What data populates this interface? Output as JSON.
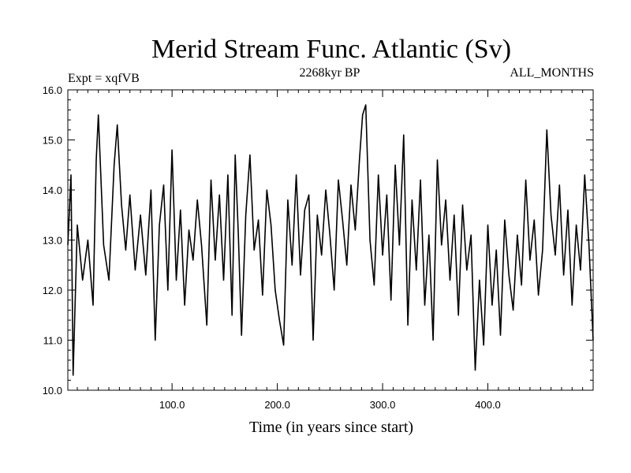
{
  "chart_data": {
    "type": "line",
    "title": "Merid Stream Func. Atlantic (Sv)",
    "subtitle_left": "Expt = xqfVB",
    "subtitle_center": "2268kyr BP",
    "subtitle_right": "ALL_MONTHS",
    "xlabel": "Time (in years since start)",
    "ylabel": "",
    "xlim": [
      1,
      500
    ],
    "ylim": [
      10.0,
      16.0
    ],
    "x_ticks": [
      100,
      200,
      300,
      400
    ],
    "x_tick_labels": [
      "100.0",
      "200.0",
      "300.0",
      "400.0"
    ],
    "y_ticks": [
      10,
      11,
      12,
      13,
      14,
      15,
      16
    ],
    "y_tick_labels": [
      "10.0",
      "11.0",
      "12.0",
      "13.0",
      "14.0",
      "15.0",
      "16.0"
    ],
    "series": [
      {
        "name": "Merid Stream Func. Atlantic",
        "color": "#000000",
        "x": [
          1,
          4,
          6,
          10,
          15,
          20,
          25,
          28,
          30,
          35,
          40,
          45,
          48,
          52,
          56,
          60,
          65,
          70,
          75,
          80,
          84,
          88,
          92,
          96,
          100,
          104,
          108,
          112,
          116,
          120,
          124,
          128,
          133,
          137,
          141,
          145,
          149,
          153,
          157,
          160,
          163,
          166,
          170,
          174,
          178,
          182,
          186,
          190,
          194,
          198,
          202,
          206,
          210,
          214,
          218,
          222,
          226,
          230,
          234,
          238,
          242,
          246,
          250,
          254,
          258,
          262,
          266,
          270,
          274,
          278,
          281,
          284,
          288,
          292,
          296,
          300,
          304,
          308,
          312,
          316,
          320,
          324,
          328,
          332,
          336,
          340,
          344,
          348,
          352,
          356,
          360,
          364,
          368,
          372,
          376,
          380,
          384,
          388,
          392,
          396,
          400,
          404,
          408,
          412,
          416,
          420,
          424,
          428,
          432,
          436,
          440,
          444,
          448,
          452,
          456,
          460,
          464,
          468,
          472,
          476,
          480,
          484,
          488,
          492,
          496,
          500
        ],
        "values": [
          12.9,
          14.3,
          10.3,
          13.3,
          12.2,
          13.0,
          11.7,
          14.6,
          15.5,
          12.9,
          12.2,
          14.5,
          15.3,
          13.7,
          12.8,
          13.9,
          12.4,
          13.5,
          12.3,
          14.0,
          11.0,
          13.3,
          14.1,
          12.0,
          14.8,
          12.2,
          13.6,
          11.7,
          13.2,
          12.6,
          13.8,
          12.9,
          11.3,
          14.2,
          12.6,
          13.9,
          12.2,
          14.3,
          11.5,
          14.7,
          13.1,
          11.1,
          13.5,
          14.7,
          12.8,
          13.4,
          11.9,
          14.0,
          13.3,
          12.0,
          11.4,
          10.9,
          13.8,
          12.5,
          14.3,
          12.3,
          13.6,
          13.9,
          11.0,
          13.5,
          12.7,
          14.0,
          13.1,
          12.0,
          14.2,
          13.4,
          12.5,
          14.1,
          13.2,
          14.6,
          15.5,
          15.7,
          13.0,
          12.1,
          14.3,
          12.7,
          13.9,
          11.8,
          14.5,
          12.9,
          15.1,
          11.3,
          13.8,
          12.4,
          14.2,
          11.7,
          13.1,
          11.0,
          14.6,
          12.9,
          13.8,
          12.2,
          13.5,
          11.5,
          13.7,
          12.4,
          13.1,
          10.4,
          12.2,
          10.9,
          13.3,
          11.7,
          12.8,
          11.1,
          13.4,
          12.3,
          11.6,
          13.1,
          12.1,
          14.2,
          12.6,
          13.4,
          11.9,
          12.8,
          15.2,
          13.5,
          12.7,
          14.1,
          12.3,
          13.6,
          11.7,
          13.3,
          12.4,
          14.3,
          12.9,
          11.0
        ]
      }
    ]
  }
}
